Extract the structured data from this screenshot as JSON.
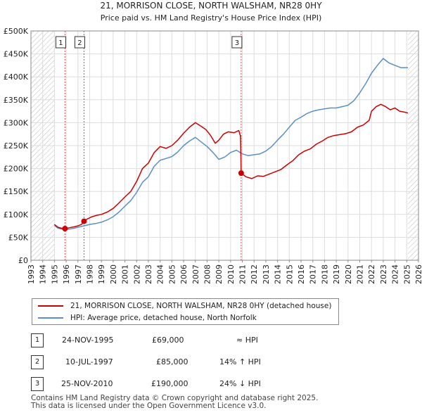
{
  "chart_data": {
    "type": "line",
    "title": "21, MORRISON CLOSE, NORTH WALSHAM, NR28 0HY",
    "subtitle": "Price paid vs. HM Land Registry's House Price Index (HPI)",
    "xlim": [
      1993,
      2026
    ],
    "ylim": [
      0,
      500000
    ],
    "x_ticks": [
      "1993",
      "1994",
      "1995",
      "1996",
      "1997",
      "1998",
      "1999",
      "2000",
      "2001",
      "2002",
      "2003",
      "2004",
      "2005",
      "2006",
      "2007",
      "2008",
      "2009",
      "2010",
      "2011",
      "2012",
      "2013",
      "2014",
      "2015",
      "2016",
      "2017",
      "2018",
      "2019",
      "2020",
      "2021",
      "2022",
      "2023",
      "2024",
      "2025",
      "2026"
    ],
    "y_ticks": [
      {
        "value": 0,
        "label": "£0"
      },
      {
        "value": 50000,
        "label": "£50K"
      },
      {
        "value": 100000,
        "label": "£100K"
      },
      {
        "value": 150000,
        "label": "£150K"
      },
      {
        "value": 200000,
        "label": "£200K"
      },
      {
        "value": 250000,
        "label": "£250K"
      },
      {
        "value": 300000,
        "label": "£300K"
      },
      {
        "value": 350000,
        "label": "£350K"
      },
      {
        "value": 400000,
        "label": "£400K"
      },
      {
        "value": 450000,
        "label": "£450K"
      },
      {
        "value": 500000,
        "label": "£500K"
      }
    ],
    "hatched_regions": [
      [
        1993,
        1995.0
      ],
      [
        2025.1,
        2026
      ]
    ],
    "grid": true,
    "series": [
      {
        "name": "21, MORRISON CLOSE, NORTH WALSHAM, NR28 0HY (detached house)",
        "color": "#cc0000",
        "x": [
          1995.0,
          1995.3,
          1995.6,
          1995.9,
          1996.3,
          1996.7,
          1997.0,
          1997.3,
          1997.52,
          1997.8,
          1998.2,
          1998.6,
          1999.0,
          1999.5,
          2000.0,
          2000.5,
          2001.0,
          2001.5,
          2002.0,
          2002.5,
          2003.0,
          2003.5,
          2004.0,
          2004.5,
          2005.0,
          2005.5,
          2006.0,
          2006.5,
          2007.0,
          2007.5,
          2007.9,
          2008.3,
          2008.7,
          2009.0,
          2009.4,
          2009.8,
          2010.3,
          2010.7,
          2010.85,
          2010.9,
          2011.3,
          2011.8,
          2012.3,
          2012.8,
          2013.3,
          2013.8,
          2014.3,
          2014.8,
          2015.3,
          2015.8,
          2016.3,
          2016.8,
          2017.3,
          2017.8,
          2018.3,
          2018.8,
          2019.3,
          2019.8,
          2020.3,
          2020.8,
          2021.3,
          2021.8,
          2022.0,
          2022.4,
          2022.8,
          2023.2,
          2023.6,
          2024.0,
          2024.4,
          2024.8,
          2025.1
        ],
        "values": [
          78000,
          72000,
          70000,
          69000,
          71000,
          73000,
          75000,
          78000,
          85000,
          90000,
          95000,
          98000,
          100000,
          105000,
          113000,
          125000,
          138000,
          150000,
          172000,
          200000,
          212000,
          235000,
          248000,
          244000,
          250000,
          262000,
          277000,
          290000,
          300000,
          292000,
          285000,
          272000,
          255000,
          262000,
          275000,
          280000,
          278000,
          283000,
          270000,
          190000,
          182000,
          178000,
          184000,
          183000,
          188000,
          193000,
          198000,
          208000,
          217000,
          230000,
          238000,
          243000,
          253000,
          260000,
          268000,
          272000,
          274000,
          276000,
          280000,
          290000,
          295000,
          305000,
          325000,
          335000,
          340000,
          335000,
          328000,
          332000,
          325000,
          323000,
          321000
        ]
      },
      {
        "name": "HPI: Average price, detached house, North Norfolk",
        "color": "#5b8fc8",
        "x": [
          1995.0,
          1995.3,
          1995.6,
          1995.9,
          1996.3,
          1996.7,
          1997.0,
          1997.5,
          1998.0,
          1998.5,
          1999.0,
          1999.5,
          2000.0,
          2000.5,
          2001.0,
          2001.5,
          2002.0,
          2002.5,
          2003.0,
          2003.5,
          2004.0,
          2004.5,
          2005.0,
          2005.5,
          2006.0,
          2006.5,
          2007.0,
          2007.5,
          2008.0,
          2008.5,
          2009.0,
          2009.5,
          2010.0,
          2010.5,
          2011.0,
          2011.5,
          2012.0,
          2012.5,
          2013.0,
          2013.5,
          2014.0,
          2014.5,
          2015.0,
          2015.5,
          2016.0,
          2016.5,
          2017.0,
          2017.5,
          2018.0,
          2018.5,
          2019.0,
          2019.5,
          2020.0,
          2020.5,
          2021.0,
          2021.5,
          2022.0,
          2022.5,
          2023.0,
          2023.5,
          2024.0,
          2024.5,
          2025.1
        ],
        "values": [
          76000,
          70000,
          68000,
          67000,
          68000,
          70000,
          72000,
          75000,
          78000,
          80000,
          83000,
          88000,
          95000,
          105000,
          118000,
          130000,
          148000,
          170000,
          182000,
          205000,
          218000,
          222000,
          226000,
          236000,
          250000,
          260000,
          268000,
          258000,
          248000,
          235000,
          220000,
          225000,
          235000,
          240000,
          232000,
          228000,
          230000,
          232000,
          238000,
          248000,
          262000,
          275000,
          290000,
          305000,
          312000,
          320000,
          325000,
          328000,
          330000,
          332000,
          332000,
          335000,
          338000,
          348000,
          365000,
          385000,
          408000,
          425000,
          440000,
          430000,
          425000,
          420000,
          420000
        ]
      }
    ],
    "markers": [
      {
        "label": "1",
        "x": 1995.9,
        "y": 69000
      },
      {
        "label": "2",
        "x": 1997.52,
        "y": 85000
      },
      {
        "label": "3",
        "x": 2010.9,
        "y": 190000
      }
    ]
  },
  "legend": {
    "items": [
      {
        "label": "21, MORRISON CLOSE, NORTH WALSHAM, NR28 0HY (detached house)",
        "color": "#cc0000"
      },
      {
        "label": "HPI: Average price, detached house, North Norfolk",
        "color": "#5b8fc8"
      }
    ]
  },
  "transactions": [
    {
      "num": "1",
      "date": "24-NOV-1995",
      "price": "£69,000",
      "hpi": "≈ HPI"
    },
    {
      "num": "2",
      "date": "10-JUL-1997",
      "price": "£85,000",
      "hpi": "14% ↑ HPI"
    },
    {
      "num": "3",
      "date": "25-NOV-2010",
      "price": "£190,000",
      "hpi": "24% ↓ HPI"
    }
  ],
  "footer": {
    "line1": "Contains HM Land Registry data © Crown copyright and database right 2025.",
    "line2": "This data is licensed under the Open Government Licence v3.0."
  }
}
